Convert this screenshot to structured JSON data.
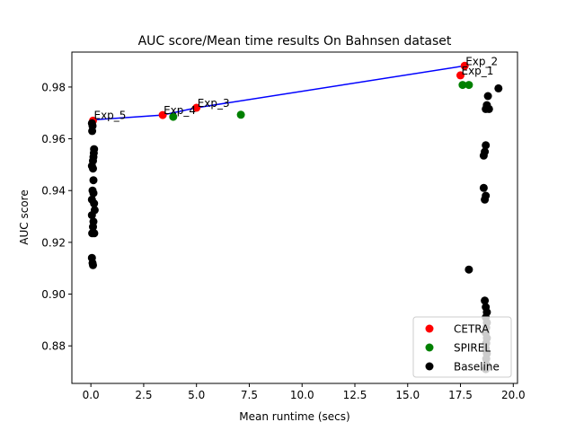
{
  "chart_data": {
    "type": "scatter",
    "title": "AUC score/Mean time results On Bahnsen dataset",
    "xlabel": "Mean runtime (secs)",
    "ylabel": "AUC score",
    "xlim": [
      -0.9,
      20.2
    ],
    "ylim": [
      0.8655,
      0.9935
    ],
    "xticks": [
      0.0,
      2.5,
      5.0,
      7.5,
      10.0,
      12.5,
      15.0,
      17.5,
      20.0
    ],
    "xtick_labels": [
      "0.0",
      "2.5",
      "5.0",
      "7.5",
      "10.0",
      "12.5",
      "15.0",
      "17.5",
      "20.0"
    ],
    "yticks": [
      0.88,
      0.9,
      0.92,
      0.94,
      0.96,
      0.98
    ],
    "ytick_labels": [
      "0.88",
      "0.90",
      "0.92",
      "0.94",
      "0.96",
      "0.98"
    ],
    "grid": false,
    "legend_position": "lower-right",
    "line": {
      "color": "#0000ff",
      "points": [
        [
          0.1,
          0.9673
        ],
        [
          3.4,
          0.9692
        ],
        [
          5.0,
          0.972
        ],
        [
          17.7,
          0.9882
        ]
      ]
    },
    "series": [
      {
        "name": "CETRA",
        "color": "#ff0000",
        "points": [
          [
            0.1,
            0.967
          ],
          [
            3.4,
            0.9692
          ],
          [
            5.0,
            0.972
          ],
          [
            17.5,
            0.9845
          ],
          [
            17.7,
            0.9882
          ]
        ]
      },
      {
        "name": "SPIREL",
        "color": "#008000",
        "points": [
          [
            3.9,
            0.9685
          ],
          [
            7.1,
            0.9693
          ],
          [
            17.6,
            0.9808
          ],
          [
            17.9,
            0.9808
          ]
        ]
      },
      {
        "name": "Baseline",
        "color": "#000000",
        "points": [
          [
            0.05,
            0.966
          ],
          [
            0.08,
            0.965
          ],
          [
            0.06,
            0.963
          ],
          [
            0.15,
            0.956
          ],
          [
            0.14,
            0.9545
          ],
          [
            0.12,
            0.953
          ],
          [
            0.1,
            0.9515
          ],
          [
            0.05,
            0.9495
          ],
          [
            0.1,
            0.9485
          ],
          [
            0.12,
            0.944
          ],
          [
            0.08,
            0.94
          ],
          [
            0.12,
            0.939
          ],
          [
            0.05,
            0.9365
          ],
          [
            0.15,
            0.935
          ],
          [
            0.18,
            0.9325
          ],
          [
            0.05,
            0.9305
          ],
          [
            0.12,
            0.928
          ],
          [
            0.1,
            0.926
          ],
          [
            0.06,
            0.9235
          ],
          [
            0.16,
            0.9235
          ],
          [
            0.05,
            0.914
          ],
          [
            0.08,
            0.912
          ],
          [
            0.1,
            0.9112
          ],
          [
            18.7,
            0.9575
          ],
          [
            18.65,
            0.955
          ],
          [
            18.6,
            0.9535
          ],
          [
            18.6,
            0.941
          ],
          [
            18.7,
            0.938
          ],
          [
            18.65,
            0.9365
          ],
          [
            18.8,
            0.9765
          ],
          [
            18.75,
            0.973
          ],
          [
            18.7,
            0.9715
          ],
          [
            18.85,
            0.9715
          ],
          [
            19.3,
            0.9795
          ],
          [
            17.9,
            0.9095
          ],
          [
            18.65,
            0.8975
          ],
          [
            18.7,
            0.895
          ],
          [
            18.75,
            0.893
          ],
          [
            18.7,
            0.891
          ],
          [
            18.75,
            0.889
          ],
          [
            18.72,
            0.887
          ],
          [
            18.7,
            0.885
          ],
          [
            18.75,
            0.883
          ],
          [
            18.72,
            0.881
          ],
          [
            18.7,
            0.879
          ],
          [
            18.75,
            0.877
          ],
          [
            18.72,
            0.875
          ],
          [
            18.75,
            0.8725
          ],
          [
            18.7,
            0.871
          ]
        ]
      }
    ],
    "annotations": [
      {
        "text": "Exp_2",
        "x": 17.7,
        "y": 0.9882
      },
      {
        "text": "Exp_1",
        "x": 17.5,
        "y": 0.9845
      },
      {
        "text": "Exp_3",
        "x": 5.0,
        "y": 0.972
      },
      {
        "text": "Exp_4",
        "x": 3.4,
        "y": 0.9692
      },
      {
        "text": "Exp_5",
        "x": 0.1,
        "y": 0.9673
      }
    ]
  }
}
